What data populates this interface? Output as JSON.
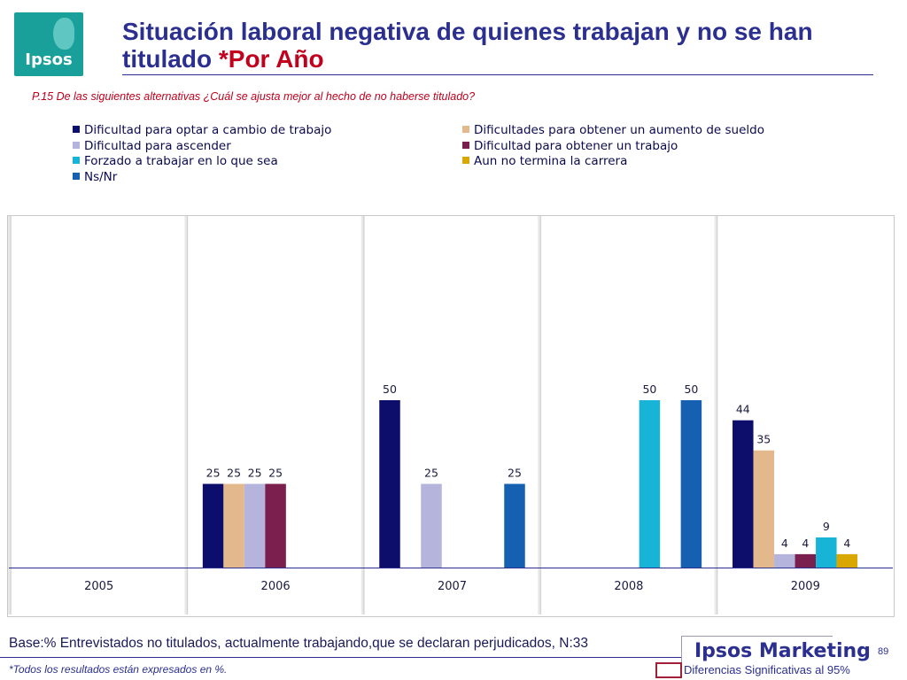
{
  "logo": {
    "text": "Ipsos"
  },
  "header": {
    "title_main": "Situación laboral negativa de quienes trabajan y no se han titulado ",
    "title_suffix": "*Por Año",
    "question": "P.15   De las siguientes alternativas ¿Cuál se ajusta mejor al hecho de no haberse titulado?"
  },
  "footer": {
    "base": "Base:% Entrevistados no titulados, actualmente trabajando,que se declaran perjudicados, N:33",
    "note": "*Todos los resultados están expresados en %.",
    "brand": "Ipsos Marketing",
    "page": "89",
    "significance_label": "Diferencias Significativas al 95%"
  },
  "colors": {
    "title": "#2b2f8f",
    "accent_red": "#c0001d",
    "logo_bg": "#1aa09a"
  },
  "chart_data": {
    "type": "bar",
    "categories": [
      "2005",
      "2006",
      "2007",
      "2008",
      "2009"
    ],
    "ylim": [
      0,
      100
    ],
    "grid": false,
    "legend_position": "top",
    "series": [
      {
        "name": "Dificultad para optar a cambio de trabajo",
        "color": "#0d0d6b",
        "values": [
          null,
          25,
          50,
          null,
          44
        ]
      },
      {
        "name": "Dificultades para obtener un aumento de sueldo",
        "color": "#e3b88c",
        "values": [
          null,
          25,
          null,
          null,
          35
        ]
      },
      {
        "name": "Dificultad para ascender",
        "color": "#b4b4dc",
        "values": [
          null,
          25,
          25,
          null,
          4
        ]
      },
      {
        "name": "Dificultad para obtener un trabajo",
        "color": "#7a1f4e",
        "values": [
          null,
          25,
          null,
          null,
          4
        ]
      },
      {
        "name": "Forzado a trabajar en lo que sea",
        "color": "#17b4d8",
        "values": [
          null,
          null,
          null,
          50,
          9
        ]
      },
      {
        "name": "Aun no termina la carrera",
        "color": "#d9a800",
        "values": [
          null,
          null,
          null,
          null,
          4
        ]
      },
      {
        "name": "Ns/Nr",
        "color": "#1560b0",
        "values": [
          null,
          null,
          25,
          50,
          null
        ]
      }
    ]
  }
}
